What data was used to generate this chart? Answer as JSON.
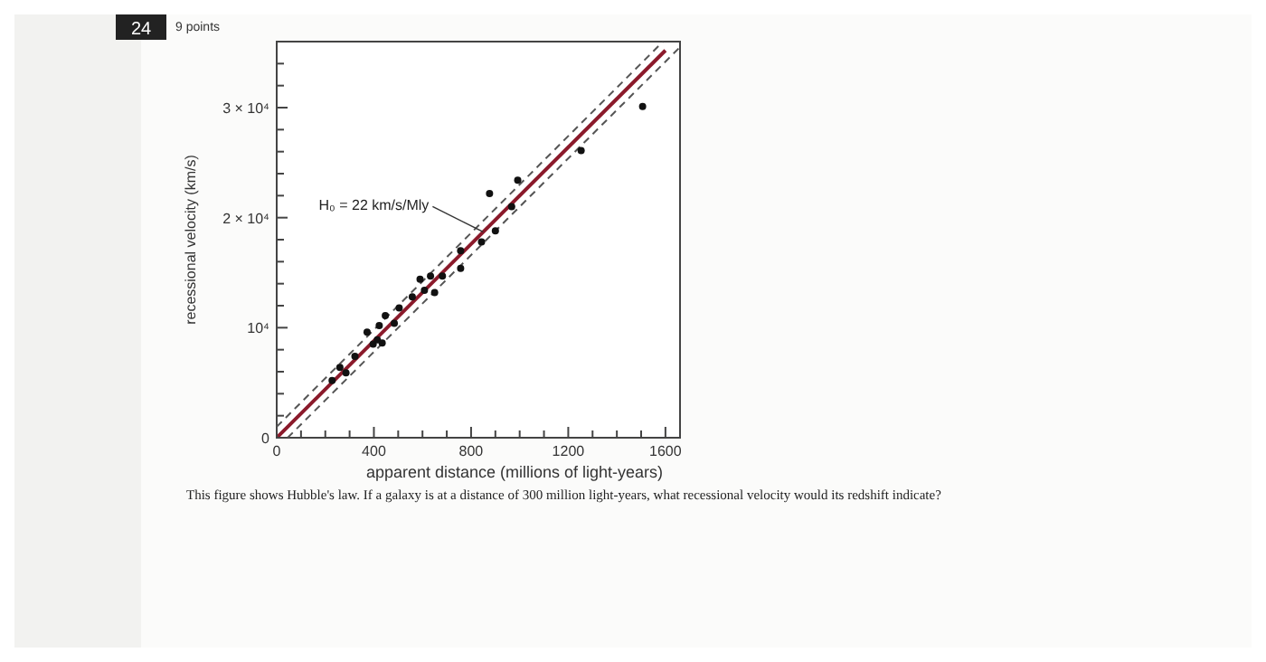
{
  "chart_data": {
    "type": "scatter",
    "xlabel": "apparent distance (millions of light-years)",
    "ylabel": "recessional velocity (km/s)",
    "xlim": [
      0,
      1660
    ],
    "ylim": [
      0,
      36000
    ],
    "xticks": [
      0,
      {
        "value": 100,
        "label": null
      },
      {
        "value": 200,
        "label": null
      },
      {
        "value": 300,
        "label": null
      },
      400,
      {
        "value": 500,
        "label": null
      },
      {
        "value": 600,
        "label": null
      },
      {
        "value": 700,
        "label": null
      },
      800,
      {
        "value": 900,
        "label": null
      },
      {
        "value": 1000,
        "label": null
      },
      {
        "value": 1100,
        "label": null
      },
      1200,
      {
        "value": 1300,
        "label": null
      },
      {
        "value": 1400,
        "label": null
      },
      {
        "value": 1500,
        "label": null
      },
      1600
    ],
    "yticks": [
      0,
      {
        "value": 2000,
        "label": null
      },
      {
        "value": 4000,
        "label": null
      },
      {
        "value": 6000,
        "label": null
      },
      {
        "value": 8000,
        "label": null
      },
      {
        "value": 10000,
        "label": "10⁴"
      },
      {
        "value": 12000,
        "label": null
      },
      {
        "value": 14000,
        "label": null
      },
      {
        "value": 16000,
        "label": null
      },
      {
        "value": 18000,
        "label": null
      },
      {
        "value": 20000,
        "label": "2 × 10⁴"
      },
      {
        "value": 22000,
        "label": null
      },
      {
        "value": 24000,
        "label": null
      },
      {
        "value": 26000,
        "label": null
      },
      {
        "value": 28000,
        "label": null
      },
      {
        "value": 30000,
        "label": "3 × 10⁴"
      },
      {
        "value": 32000,
        "label": null
      },
      {
        "value": 34000,
        "label": null
      }
    ],
    "series": [
      {
        "type": "line",
        "color": "#8b1a2b",
        "line_style": "solid",
        "marker": "none",
        "x": [
          0,
          1600
        ],
        "values": [
          0,
          35200
        ]
      },
      {
        "type": "line",
        "color": "#555555",
        "line_style": "dashed",
        "marker": "none",
        "x": [
          0,
          1590
        ],
        "values": [
          1000,
          36000
        ]
      },
      {
        "type": "line",
        "color": "#555555",
        "line_style": "dashed",
        "marker": "none",
        "x": [
          45,
          1660
        ],
        "values": [
          0,
          35500
        ]
      },
      {
        "color": "#111111",
        "marker": "circle",
        "x": [
          228,
          260,
          285,
          322,
          372,
          397,
          414,
          422,
          434,
          447,
          484,
          504,
          558,
          590,
          608,
          633,
          650,
          682,
          757,
          757,
          843,
          876,
          900,
          967,
          992,
          1253,
          1506
        ],
        "values": [
          5200,
          6400,
          5900,
          7400,
          9600,
          8500,
          8900,
          10200,
          8600,
          11100,
          10400,
          11800,
          12800,
          14400,
          13400,
          14700,
          13200,
          14700,
          17000,
          15400,
          17800,
          22200,
          18800,
          21000,
          23400,
          26100,
          30100
        ]
      }
    ],
    "annotations": [
      {
        "text": "H₀ = 22 km/s/Mly",
        "x": 850,
        "y": 18700
      },
      "24",
      "9 points",
      "This figure shows Hubble's law. If a galaxy is at a distance of 300 million light-years, what recessional velocity would its redshift indicate?"
    ]
  }
}
